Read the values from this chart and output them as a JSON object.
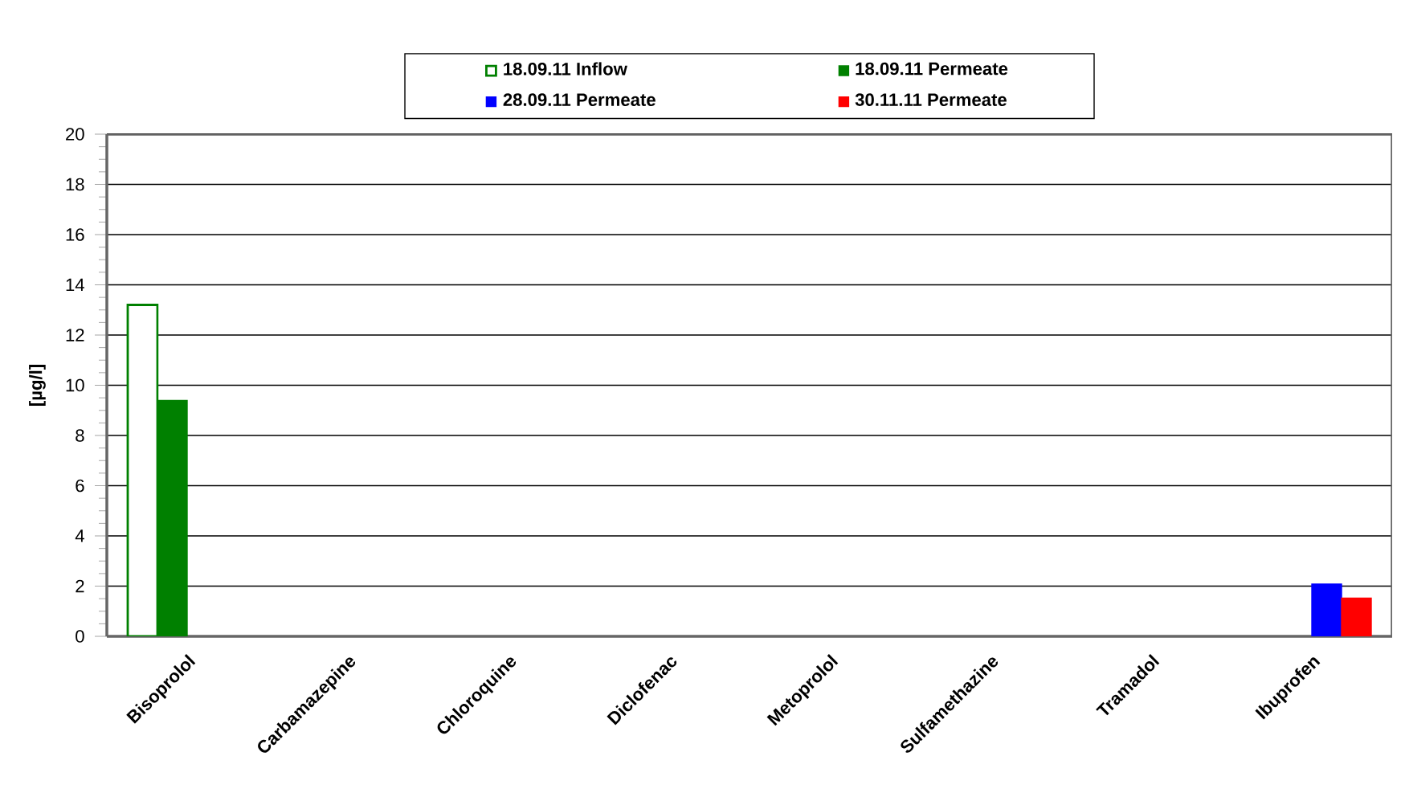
{
  "chart_data": {
    "type": "bar",
    "ylabel": "[µg/l]",
    "categories": [
      "Bisoprolol",
      "Carbamazepine",
      "Chloroquine",
      "Diclofenac",
      "Metoprolol",
      "Sulfamethazine",
      "Tramadol",
      "Ibuprofen"
    ],
    "series": [
      {
        "name": "18.09.11 Inflow",
        "color": "#008000",
        "values": [
          13.2,
          null,
          null,
          null,
          null,
          null,
          null,
          null
        ]
      },
      {
        "name": "18.09.11 Permeate",
        "color": "#008000",
        "values": [
          9.4,
          null,
          null,
          null,
          null,
          null,
          null,
          null
        ]
      },
      {
        "name": "28.09.11 Permeate",
        "color": "#0000ff",
        "values": [
          null,
          null,
          null,
          null,
          null,
          null,
          null,
          2.08
        ]
      },
      {
        "name": "30.11.11 Permeate",
        "color": "#ff0000",
        "values": [
          null,
          null,
          null,
          null,
          null,
          null,
          null,
          1.52
        ]
      }
    ],
    "ylim": [
      0,
      20
    ],
    "yticks": [
      0,
      2,
      4,
      6,
      8,
      10,
      12,
      14,
      16,
      18,
      20
    ],
    "grid": "y",
    "legend": "top"
  }
}
